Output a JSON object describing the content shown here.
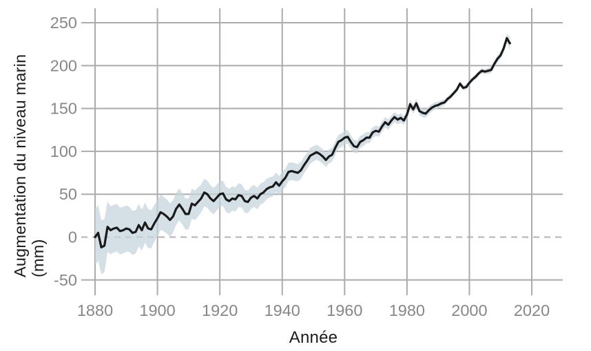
{
  "chart_data": {
    "type": "line",
    "title": "",
    "xlabel": "Année",
    "ylabel_line1": "Augmentation du niveau marin",
    "ylabel_line2": "(mm)",
    "x_ticks": [
      1880,
      1900,
      1920,
      1940,
      1960,
      1980,
      2000,
      2020
    ],
    "y_ticks": [
      250,
      200,
      150,
      100,
      50,
      0,
      -50
    ],
    "xlim": [
      1880,
      2020
    ],
    "ylim": [
      -67,
      267
    ],
    "grid": true,
    "legend": "none",
    "zero_line": {
      "value": 0,
      "style": "dashed"
    },
    "series": {
      "start_year": 1880,
      "end_year": 2013,
      "values": [
        0,
        5,
        -12,
        -10,
        12,
        8,
        10,
        11,
        7,
        8,
        10,
        9,
        5,
        6,
        14,
        8,
        17,
        10,
        9,
        16,
        22,
        29,
        27,
        24,
        20,
        24,
        33,
        38,
        33,
        27,
        27,
        39,
        37,
        41,
        45,
        52,
        50,
        45,
        42,
        46,
        50,
        51,
        44,
        42,
        45,
        44,
        49,
        48,
        42,
        41,
        46,
        48,
        45,
        50,
        52,
        56,
        58,
        59,
        64,
        60,
        65,
        69,
        76,
        77,
        76,
        75,
        78,
        84,
        89,
        95,
        97,
        99,
        97,
        94,
        90,
        94,
        96,
        104,
        111,
        113,
        116,
        117,
        111,
        106,
        105,
        111,
        113,
        116,
        116,
        122,
        124,
        123,
        129,
        134,
        131,
        136,
        140,
        137,
        139,
        136,
        143,
        155,
        149,
        156,
        147,
        145,
        144,
        148,
        151,
        153,
        154,
        156,
        157,
        161,
        164,
        168,
        172,
        179,
        174,
        175,
        180,
        184,
        187,
        191,
        194,
        193,
        194,
        195,
        202,
        208,
        212,
        220,
        232,
        226
      ]
    },
    "uncertainty_band": {
      "halfwidth_breakpoints": [
        [
          1880,
          33
        ],
        [
          1883,
          31
        ],
        [
          1885,
          28
        ],
        [
          1890,
          27
        ],
        [
          1895,
          24
        ],
        [
          1900,
          21
        ],
        [
          1905,
          19
        ],
        [
          1910,
          18
        ],
        [
          1915,
          16
        ],
        [
          1920,
          15
        ],
        [
          1925,
          14
        ],
        [
          1930,
          13
        ],
        [
          1935,
          12
        ],
        [
          1940,
          11
        ],
        [
          1945,
          10
        ],
        [
          1950,
          9
        ],
        [
          1955,
          8
        ],
        [
          1960,
          8
        ],
        [
          1965,
          7
        ],
        [
          1970,
          6
        ],
        [
          1975,
          6
        ],
        [
          1980,
          5
        ],
        [
          1985,
          5
        ],
        [
          1990,
          4
        ],
        [
          1993,
          3
        ],
        [
          2000,
          3
        ],
        [
          2005,
          3
        ],
        [
          2008,
          4
        ],
        [
          2010,
          4
        ],
        [
          2012,
          5
        ],
        [
          2013,
          7
        ]
      ]
    },
    "colors": {
      "line": "#1a1a1a",
      "band": "#c4d3dc",
      "grid": "#ababab",
      "zero_line": "#b0b0b0",
      "tick_label": "#878787",
      "axis_title": "#1c1c1c",
      "background": "#ffffff"
    }
  }
}
